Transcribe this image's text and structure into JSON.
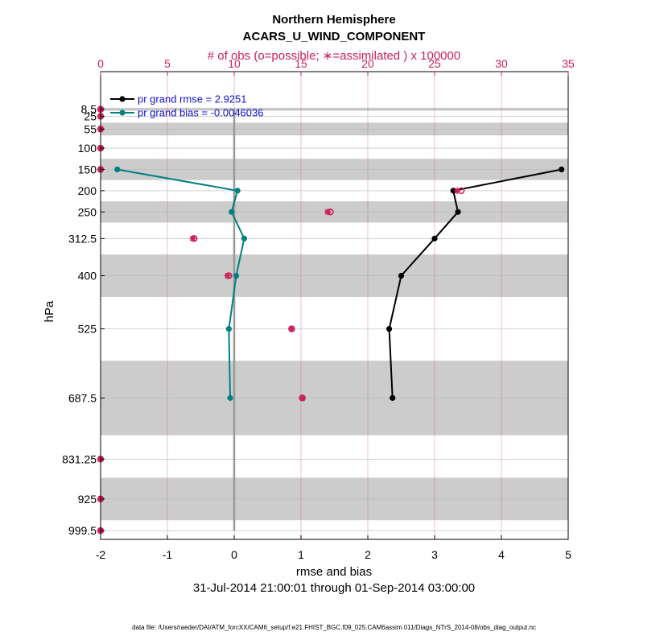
{
  "chart_data": {
    "type": "line",
    "title": "Northern Hemisphere",
    "subtitle": "ACARS_U_WIND_COMPONENT",
    "top_axis_label": "# of obs (o=possible; ∗=assimilated ) x 100000",
    "top_axis": {
      "range": [
        0,
        35
      ],
      "ticks": [
        0,
        5,
        10,
        15,
        20,
        25,
        30,
        35
      ],
      "tick_labels": [
        "0",
        "5",
        "10",
        "15",
        "20",
        "25",
        "30",
        "35"
      ]
    },
    "xlabel": "rmse and bias",
    "xlim": [
      -2,
      5
    ],
    "x_ticks": [
      -2,
      -1,
      0,
      1,
      2,
      3,
      4,
      5
    ],
    "x_tick_labels": [
      "-2",
      "-1",
      "0",
      "1",
      "2",
      "3",
      "4",
      "5"
    ],
    "ylabel": "hPa",
    "y_axis": "pressure, increasing downward",
    "ylim": [
      1020,
      -80
    ],
    "levels": [
      8.5,
      25,
      55,
      100,
      150,
      200,
      250,
      312.5,
      400,
      525,
      687.5,
      831.25,
      925,
      999.5
    ],
    "level_labels": [
      "8.5",
      "25",
      "55",
      "100",
      "150",
      "200",
      "250",
      "312.5",
      "400",
      "525",
      "687.5",
      "831.25",
      "925",
      "999.5"
    ],
    "layer_bands_hPa": [
      [
        5,
        12
      ],
      [
        40,
        70
      ],
      [
        125,
        175
      ],
      [
        225,
        275
      ],
      [
        350,
        450
      ],
      [
        600,
        775
      ],
      [
        875,
        975
      ]
    ],
    "date_range": "31-Jul-2014 21:00:01 through 01-Sep-2014 03:00:00",
    "footer": "data file: /Users/raeder/DAI/ATM_forcXX/CAM6_setup/f.e21.FHIST_BGC.f09_025.CAM6assim.011/Diags_NTrS_2014-08/obs_diag_output.nc",
    "legend": [
      {
        "label": "pr grand rmse = 2.9251",
        "color": "#000000"
      },
      {
        "label": "pr grand bias = -0.0046036",
        "color": "#008080"
      }
    ],
    "series": [
      {
        "name": "rmse",
        "color": "#000000",
        "levels": [
          150,
          200,
          250,
          312.5,
          400,
          525,
          687.5
        ],
        "values": [
          4.9,
          3.28,
          3.35,
          3.0,
          2.5,
          2.32,
          2.37
        ]
      },
      {
        "name": "bias",
        "color": "#008080",
        "levels": [
          150,
          200,
          250,
          312.5,
          400,
          525,
          687.5
        ],
        "values": [
          -1.75,
          0.05,
          -0.04,
          0.15,
          0.03,
          -0.08,
          -0.06
        ]
      },
      {
        "name": "obs possible (x100000)",
        "color": "#cc1f55",
        "marker": "o",
        "levels": [
          8.5,
          25,
          55,
          100,
          150,
          200,
          250,
          312.5,
          400,
          525,
          687.5,
          831.25,
          925,
          999.5
        ],
        "values": [
          0,
          0,
          0,
          0,
          0,
          27.0,
          17.2,
          7.0,
          9.6,
          14.3,
          15.1,
          0,
          0,
          0
        ]
      },
      {
        "name": "obs assimilated (x100000)",
        "color": "#cc1f55",
        "marker": "*",
        "levels": [
          8.5,
          25,
          55,
          100,
          150,
          200,
          250,
          312.5,
          400,
          525,
          687.5,
          831.25,
          925,
          999.5
        ],
        "values": [
          0,
          0,
          0,
          0,
          0,
          26.7,
          17.0,
          6.9,
          9.5,
          14.3,
          15.1,
          0,
          0,
          0
        ]
      }
    ]
  }
}
